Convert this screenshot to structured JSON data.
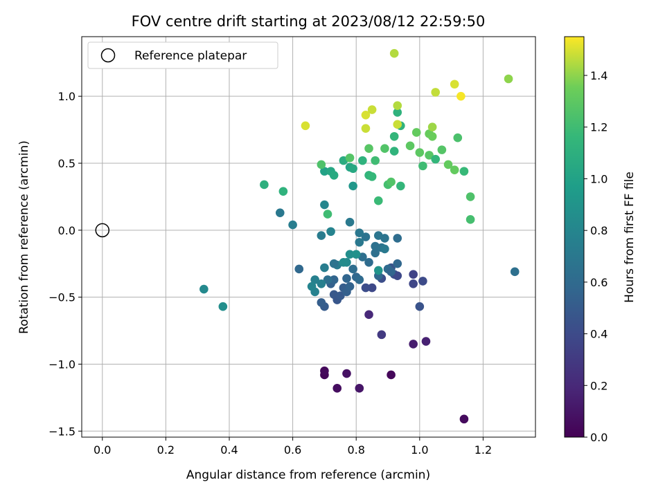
{
  "chart_data": {
    "type": "scatter",
    "title": "FOV centre drift starting at 2023/08/12 22:59:50",
    "xlabel": "Angular distance from reference (arcmin)",
    "ylabel": "Rotation from reference (arcmin)",
    "xlim": [
      -0.065,
      1.365
    ],
    "ylim": [
      -1.545,
      1.445
    ],
    "xticks": [
      0.0,
      0.2,
      0.4,
      0.6,
      0.8,
      1.0,
      1.2
    ],
    "xtick_labels": [
      "0.0",
      "0.2",
      "0.4",
      "0.6",
      "0.8",
      "1.0",
      "1.2"
    ],
    "yticks": [
      -1.5,
      -1.0,
      -0.5,
      0.0,
      0.5,
      1.0
    ],
    "ytick_labels": [
      "−1.5",
      "−1.0",
      "−0.5",
      "0.0",
      "0.5",
      "1.0"
    ],
    "grid": true,
    "legend": {
      "position": "top-left",
      "entries": [
        "Reference platepar"
      ]
    },
    "reference_point": {
      "x": 0.0,
      "y": 0.0
    },
    "colorbar": {
      "label": "Hours from first FF file",
      "colormap": "viridis",
      "range": [
        0.0,
        1.55
      ],
      "ticks": [
        0.0,
        0.2,
        0.4,
        0.6,
        0.8,
        1.0,
        1.2,
        1.4
      ],
      "tick_labels": [
        "0.0",
        "0.2",
        "0.4",
        "0.6",
        "0.8",
        "1.0",
        "1.2",
        "1.4"
      ]
    },
    "points": [
      {
        "x": 0.7,
        "y": -1.08,
        "c": 0.02
      },
      {
        "x": 0.7,
        "y": -1.05,
        "c": 0.04
      },
      {
        "x": 0.74,
        "y": -1.18,
        "c": 0.06
      },
      {
        "x": 0.77,
        "y": -1.07,
        "c": 0.08
      },
      {
        "x": 0.81,
        "y": -1.18,
        "c": 0.1
      },
      {
        "x": 0.91,
        "y": -1.08,
        "c": 0.03
      },
      {
        "x": 1.14,
        "y": -1.41,
        "c": 0.05
      },
      {
        "x": 0.98,
        "y": -0.85,
        "c": 0.14
      },
      {
        "x": 1.02,
        "y": -0.83,
        "c": 0.16
      },
      {
        "x": 0.84,
        "y": -0.63,
        "c": 0.2
      },
      {
        "x": 0.88,
        "y": -0.78,
        "c": 0.3
      },
      {
        "x": 1.0,
        "y": -0.57,
        "c": 0.45
      },
      {
        "x": 0.98,
        "y": -0.33,
        "c": 0.35
      },
      {
        "x": 0.98,
        "y": -0.4,
        "c": 0.37
      },
      {
        "x": 1.01,
        "y": -0.38,
        "c": 0.4
      },
      {
        "x": 0.85,
        "y": -0.43,
        "c": 0.38
      },
      {
        "x": 0.83,
        "y": -0.43,
        "c": 0.41
      },
      {
        "x": 0.88,
        "y": -0.36,
        "c": 0.42
      },
      {
        "x": 0.92,
        "y": -0.33,
        "c": 0.44
      },
      {
        "x": 0.93,
        "y": -0.34,
        "c": 0.39
      },
      {
        "x": 0.91,
        "y": -0.28,
        "c": 0.46
      },
      {
        "x": 0.7,
        "y": -0.57,
        "c": 0.5
      },
      {
        "x": 0.69,
        "y": -0.54,
        "c": 0.52
      },
      {
        "x": 0.73,
        "y": -0.48,
        "c": 0.48
      },
      {
        "x": 0.74,
        "y": -0.52,
        "c": 0.47
      },
      {
        "x": 0.75,
        "y": -0.49,
        "c": 0.49
      },
      {
        "x": 0.76,
        "y": -0.43,
        "c": 0.51
      },
      {
        "x": 0.77,
        "y": -0.46,
        "c": 0.53
      },
      {
        "x": 0.78,
        "y": -0.42,
        "c": 0.55
      },
      {
        "x": 0.72,
        "y": -0.4,
        "c": 0.54
      },
      {
        "x": 0.73,
        "y": -0.37,
        "c": 0.56
      },
      {
        "x": 0.77,
        "y": -0.36,
        "c": 0.57
      },
      {
        "x": 0.8,
        "y": -0.35,
        "c": 0.58
      },
      {
        "x": 0.81,
        "y": -0.37,
        "c": 0.6
      },
      {
        "x": 0.87,
        "y": -0.34,
        "c": 0.59
      },
      {
        "x": 0.84,
        "y": -0.24,
        "c": 0.61
      },
      {
        "x": 0.79,
        "y": -0.29,
        "c": 0.62
      },
      {
        "x": 0.82,
        "y": -0.2,
        "c": 0.63
      },
      {
        "x": 0.86,
        "y": -0.17,
        "c": 0.64
      },
      {
        "x": 0.86,
        "y": -0.12,
        "c": 0.65
      },
      {
        "x": 0.88,
        "y": -0.13,
        "c": 0.66
      },
      {
        "x": 0.9,
        "y": -0.29,
        "c": 0.6
      },
      {
        "x": 0.91,
        "y": -0.31,
        "c": 0.57
      },
      {
        "x": 0.93,
        "y": -0.25,
        "c": 0.58
      },
      {
        "x": 0.93,
        "y": -0.06,
        "c": 0.62
      },
      {
        "x": 0.89,
        "y": -0.06,
        "c": 0.67
      },
      {
        "x": 0.87,
        "y": -0.04,
        "c": 0.68
      },
      {
        "x": 0.83,
        "y": -0.05,
        "c": 0.66
      },
      {
        "x": 0.81,
        "y": -0.02,
        "c": 0.69
      },
      {
        "x": 0.81,
        "y": -0.09,
        "c": 0.7
      },
      {
        "x": 0.89,
        "y": -0.14,
        "c": 0.71
      },
      {
        "x": 0.74,
        "y": -0.26,
        "c": 0.72
      },
      {
        "x": 0.73,
        "y": -0.25,
        "c": 0.66
      },
      {
        "x": 0.7,
        "y": -0.28,
        "c": 0.74
      },
      {
        "x": 0.71,
        "y": -0.37,
        "c": 0.63
      },
      {
        "x": 0.69,
        "y": -0.4,
        "c": 0.75
      },
      {
        "x": 0.67,
        "y": -0.37,
        "c": 0.76
      },
      {
        "x": 0.67,
        "y": -0.46,
        "c": 0.77
      },
      {
        "x": 0.66,
        "y": -0.42,
        "c": 0.79
      },
      {
        "x": 0.62,
        "y": -0.29,
        "c": 0.59
      },
      {
        "x": 0.69,
        "y": -0.04,
        "c": 0.73
      },
      {
        "x": 0.72,
        "y": -0.01,
        "c": 0.78
      },
      {
        "x": 0.78,
        "y": 0.06,
        "c": 0.71
      },
      {
        "x": 0.7,
        "y": 0.19,
        "c": 0.8
      },
      {
        "x": 0.77,
        "y": -0.24,
        "c": 0.82
      },
      {
        "x": 0.76,
        "y": -0.24,
        "c": 0.84
      },
      {
        "x": 0.78,
        "y": -0.18,
        "c": 0.86
      },
      {
        "x": 0.8,
        "y": -0.18,
        "c": 0.88
      },
      {
        "x": 0.87,
        "y": -0.3,
        "c": 0.9
      },
      {
        "x": 0.56,
        "y": 0.13,
        "c": 0.7
      },
      {
        "x": 0.6,
        "y": 0.04,
        "c": 0.74
      },
      {
        "x": 0.32,
        "y": -0.44,
        "c": 0.82
      },
      {
        "x": 0.38,
        "y": -0.57,
        "c": 0.86
      },
      {
        "x": 1.3,
        "y": -0.31,
        "c": 0.64
      },
      {
        "x": 0.79,
        "y": 0.33,
        "c": 0.92
      },
      {
        "x": 0.51,
        "y": 0.34,
        "c": 1.1
      },
      {
        "x": 0.57,
        "y": 0.29,
        "c": 1.12
      },
      {
        "x": 0.7,
        "y": 0.44,
        "c": 1.0
      },
      {
        "x": 0.72,
        "y": 0.44,
        "c": 1.04
      },
      {
        "x": 0.73,
        "y": 0.41,
        "c": 1.06
      },
      {
        "x": 0.76,
        "y": 0.52,
        "c": 1.08
      },
      {
        "x": 0.78,
        "y": 0.47,
        "c": 1.02
      },
      {
        "x": 0.79,
        "y": 0.46,
        "c": 1.05
      },
      {
        "x": 0.82,
        "y": 0.52,
        "c": 1.12
      },
      {
        "x": 0.84,
        "y": 0.41,
        "c": 1.14
      },
      {
        "x": 0.85,
        "y": 0.4,
        "c": 1.16
      },
      {
        "x": 0.86,
        "y": 0.52,
        "c": 1.2
      },
      {
        "x": 0.87,
        "y": 0.22,
        "c": 1.18
      },
      {
        "x": 0.9,
        "y": 0.34,
        "c": 1.22
      },
      {
        "x": 0.91,
        "y": 0.36,
        "c": 1.26
      },
      {
        "x": 0.94,
        "y": 0.33,
        "c": 1.15
      },
      {
        "x": 0.92,
        "y": 0.59,
        "c": 1.13
      },
      {
        "x": 0.92,
        "y": 0.7,
        "c": 1.15
      },
      {
        "x": 0.93,
        "y": 0.88,
        "c": 1.12
      },
      {
        "x": 0.94,
        "y": 0.78,
        "c": 1.13
      },
      {
        "x": 0.89,
        "y": 0.61,
        "c": 1.26
      },
      {
        "x": 0.84,
        "y": 0.61,
        "c": 1.28
      },
      {
        "x": 0.78,
        "y": 0.54,
        "c": 1.27
      },
      {
        "x": 0.69,
        "y": 0.49,
        "c": 1.25
      },
      {
        "x": 0.71,
        "y": 0.12,
        "c": 1.2
      },
      {
        "x": 0.97,
        "y": 0.63,
        "c": 1.3
      },
      {
        "x": 0.99,
        "y": 0.73,
        "c": 1.32
      },
      {
        "x": 1.0,
        "y": 0.58,
        "c": 1.3
      },
      {
        "x": 1.01,
        "y": 0.48,
        "c": 1.2
      },
      {
        "x": 1.03,
        "y": 0.56,
        "c": 1.28
      },
      {
        "x": 1.03,
        "y": 0.72,
        "c": 1.33
      },
      {
        "x": 1.04,
        "y": 0.7,
        "c": 1.34
      },
      {
        "x": 1.05,
        "y": 0.53,
        "c": 1.15
      },
      {
        "x": 1.07,
        "y": 0.6,
        "c": 1.27
      },
      {
        "x": 1.09,
        "y": 0.49,
        "c": 1.32
      },
      {
        "x": 1.11,
        "y": 0.45,
        "c": 1.32
      },
      {
        "x": 1.12,
        "y": 0.69,
        "c": 1.24
      },
      {
        "x": 1.14,
        "y": 0.44,
        "c": 1.17
      },
      {
        "x": 1.16,
        "y": 0.25,
        "c": 1.25
      },
      {
        "x": 1.16,
        "y": 0.08,
        "c": 1.22
      },
      {
        "x": 0.64,
        "y": 0.78,
        "c": 1.5
      },
      {
        "x": 0.83,
        "y": 0.86,
        "c": 1.5
      },
      {
        "x": 0.83,
        "y": 0.76,
        "c": 1.48
      },
      {
        "x": 0.85,
        "y": 0.9,
        "c": 1.48
      },
      {
        "x": 0.93,
        "y": 0.93,
        "c": 1.45
      },
      {
        "x": 0.93,
        "y": 0.79,
        "c": 1.48
      },
      {
        "x": 0.92,
        "y": 1.32,
        "c": 1.45
      },
      {
        "x": 1.04,
        "y": 0.77,
        "c": 1.42
      },
      {
        "x": 1.05,
        "y": 1.03,
        "c": 1.47
      },
      {
        "x": 1.11,
        "y": 1.09,
        "c": 1.5
      },
      {
        "x": 1.13,
        "y": 1.0,
        "c": 1.54
      },
      {
        "x": 1.28,
        "y": 1.13,
        "c": 1.4
      }
    ]
  }
}
